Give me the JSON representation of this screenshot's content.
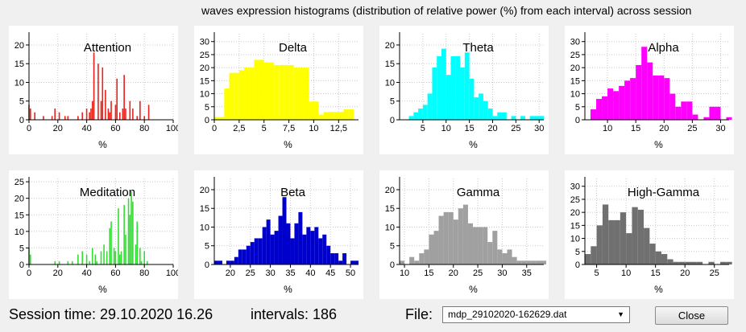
{
  "window_title": "waves expression histograms (distribution of relative power (%) from each interval) across session",
  "footer": {
    "session_time": "Session time: 29.10.2020 16.26",
    "intervals": "intervals: 186",
    "file_label": "File:",
    "file_value": "mdp_29102020-162629.dat",
    "close_label": "Close"
  },
  "chart_data": [
    {
      "type": "bar",
      "title": "Attention",
      "xlabel": "%",
      "color": "#e8241c",
      "style": "spike",
      "xlim": [
        0,
        100
      ],
      "ylim": [
        0,
        23
      ],
      "xticks": [
        0,
        20,
        40,
        60,
        80,
        100
      ],
      "yticks": [
        0,
        5,
        10,
        15,
        20
      ],
      "bins": [
        [
          0,
          4
        ],
        [
          1,
          3
        ],
        [
          4,
          2
        ],
        [
          10,
          1
        ],
        [
          16,
          1
        ],
        [
          18,
          3
        ],
        [
          21,
          2
        ],
        [
          25,
          1
        ],
        [
          27,
          1
        ],
        [
          34,
          1
        ],
        [
          37,
          2
        ],
        [
          40,
          3
        ],
        [
          42,
          2
        ],
        [
          43,
          3
        ],
        [
          44,
          5
        ],
        [
          45,
          18
        ],
        [
          48,
          15
        ],
        [
          50,
          5
        ],
        [
          51,
          14
        ],
        [
          53,
          8
        ],
        [
          55,
          3
        ],
        [
          56,
          2
        ],
        [
          57,
          5
        ],
        [
          60,
          4
        ],
        [
          61,
          11
        ],
        [
          63,
          2
        ],
        [
          65,
          3
        ],
        [
          66,
          12
        ],
        [
          67,
          3
        ],
        [
          70,
          5
        ],
        [
          72,
          3
        ],
        [
          75,
          1
        ],
        [
          77,
          5
        ],
        [
          80,
          1
        ],
        [
          83,
          4
        ]
      ],
      "bin_width": 1.0
    },
    {
      "type": "bar",
      "title": "Delta",
      "xlabel": "%",
      "color": "#ffff00",
      "style": "bar",
      "xlim": [
        0,
        14.5
      ],
      "ylim": [
        0,
        33
      ],
      "xticks": [
        0,
        2.5,
        5,
        7.5,
        10,
        12.5
      ],
      "xtick_labels": [
        "0",
        "2,5",
        "5",
        "7,5",
        "10",
        "12,5"
      ],
      "yticks": [
        0,
        5,
        10,
        15,
        20,
        25,
        30
      ],
      "bins": [
        [
          0,
          1
        ],
        [
          0.5,
          1
        ],
        [
          1,
          12
        ],
        [
          1.5,
          18
        ],
        [
          2,
          18
        ],
        [
          2.5,
          19
        ],
        [
          3,
          20
        ],
        [
          3.5,
          20
        ],
        [
          4,
          23
        ],
        [
          4.5,
          23
        ],
        [
          5,
          22
        ],
        [
          5.5,
          22
        ],
        [
          6,
          21
        ],
        [
          6.5,
          21
        ],
        [
          7,
          21
        ],
        [
          7.5,
          21
        ],
        [
          8,
          20
        ],
        [
          8.5,
          20
        ],
        [
          9,
          20
        ],
        [
          9.5,
          7
        ],
        [
          10,
          7
        ],
        [
          10.5,
          2
        ],
        [
          11,
          3
        ],
        [
          11.5,
          3
        ],
        [
          12,
          3
        ],
        [
          12.5,
          3
        ],
        [
          13,
          4
        ],
        [
          13.5,
          4
        ]
      ],
      "bin_width": 0.5
    },
    {
      "type": "bar",
      "title": "Theta",
      "xlabel": "%",
      "color": "#00ffff",
      "style": "bar",
      "xlim": [
        0,
        31
      ],
      "ylim": [
        0,
        23
      ],
      "xticks": [
        5,
        10,
        15,
        20,
        25,
        30
      ],
      "yticks": [
        0,
        5,
        10,
        15,
        20
      ],
      "bins": [
        [
          2,
          1
        ],
        [
          3,
          2
        ],
        [
          4,
          3
        ],
        [
          5,
          4
        ],
        [
          6,
          7
        ],
        [
          7,
          14
        ],
        [
          8,
          17
        ],
        [
          9,
          19
        ],
        [
          10,
          12
        ],
        [
          11,
          17
        ],
        [
          12,
          17
        ],
        [
          13,
          14
        ],
        [
          14,
          18
        ],
        [
          15,
          11
        ],
        [
          16,
          6
        ],
        [
          17,
          7
        ],
        [
          18,
          5
        ],
        [
          19,
          3
        ],
        [
          20,
          1
        ],
        [
          21,
          2
        ],
        [
          22,
          2
        ],
        [
          24,
          1
        ],
        [
          26,
          1
        ],
        [
          28,
          1
        ],
        [
          29,
          1
        ],
        [
          30,
          1
        ]
      ],
      "bin_width": 1.0
    },
    {
      "type": "bar",
      "title": "Alpha",
      "xlabel": "%",
      "color": "#ff00ff",
      "style": "bar",
      "xlim": [
        6,
        31.5
      ],
      "ylim": [
        0,
        33
      ],
      "xticks": [
        10,
        15,
        20,
        25,
        30
      ],
      "yticks": [
        0,
        5,
        10,
        15,
        20,
        25,
        30
      ],
      "bins": [
        [
          7,
          4
        ],
        [
          8,
          8
        ],
        [
          9,
          9
        ],
        [
          10,
          12
        ],
        [
          11,
          11
        ],
        [
          12,
          13
        ],
        [
          13,
          15
        ],
        [
          14,
          16
        ],
        [
          15,
          21
        ],
        [
          16,
          28
        ],
        [
          17,
          22
        ],
        [
          18,
          17
        ],
        [
          19,
          17
        ],
        [
          20,
          16
        ],
        [
          21,
          10
        ],
        [
          22,
          5
        ],
        [
          23,
          7
        ],
        [
          24,
          7
        ],
        [
          25,
          2
        ],
        [
          27,
          1
        ],
        [
          28,
          5
        ],
        [
          29,
          5
        ],
        [
          31,
          1
        ]
      ],
      "bin_width": 1.0
    },
    {
      "type": "bar",
      "title": "Meditation",
      "xlabel": "%",
      "color": "#33dd33",
      "style": "spike",
      "xlim": [
        0,
        100
      ],
      "ylim": [
        0,
        26
      ],
      "xticks": [
        0,
        20,
        40,
        60,
        80,
        100
      ],
      "yticks": [
        0,
        5,
        10,
        15,
        20,
        25
      ],
      "bins": [
        [
          0,
          5
        ],
        [
          1,
          3
        ],
        [
          18,
          1
        ],
        [
          21,
          1
        ],
        [
          27,
          1
        ],
        [
          30,
          1
        ],
        [
          34,
          3
        ],
        [
          37,
          4
        ],
        [
          40,
          3
        ],
        [
          42,
          1
        ],
        [
          44,
          5
        ],
        [
          46,
          3
        ],
        [
          47,
          1
        ],
        [
          50,
          4
        ],
        [
          52,
          6
        ],
        [
          54,
          4
        ],
        [
          56,
          11
        ],
        [
          57,
          13
        ],
        [
          59,
          5
        ],
        [
          60,
          4
        ],
        [
          62,
          17
        ],
        [
          63,
          3
        ],
        [
          64,
          4
        ],
        [
          66,
          18
        ],
        [
          67,
          9
        ],
        [
          69,
          20
        ],
        [
          70,
          15
        ],
        [
          71,
          22
        ],
        [
          72,
          19
        ],
        [
          74,
          6
        ],
        [
          75,
          13
        ],
        [
          77,
          5
        ],
        [
          78,
          1
        ],
        [
          80,
          4
        ],
        [
          82,
          1
        ]
      ],
      "bin_width": 0.9
    },
    {
      "type": "bar",
      "title": "Beta",
      "xlabel": "%",
      "color": "#0000cc",
      "style": "bar",
      "xlim": [
        16,
        52
      ],
      "ylim": [
        0,
        23
      ],
      "xticks": [
        20,
        25,
        30,
        35,
        40,
        45,
        50
      ],
      "yticks": [
        0,
        5,
        10,
        15,
        20
      ],
      "bins": [
        [
          16,
          1
        ],
        [
          17,
          1
        ],
        [
          19,
          1
        ],
        [
          20,
          1
        ],
        [
          21,
          2
        ],
        [
          22,
          4
        ],
        [
          23,
          4
        ],
        [
          24,
          5
        ],
        [
          25,
          6
        ],
        [
          26,
          7
        ],
        [
          27,
          7
        ],
        [
          28,
          10
        ],
        [
          29,
          12
        ],
        [
          30,
          8
        ],
        [
          31,
          9
        ],
        [
          32,
          13
        ],
        [
          33,
          18
        ],
        [
          34,
          11
        ],
        [
          35,
          7
        ],
        [
          36,
          11
        ],
        [
          37,
          14
        ],
        [
          38,
          8
        ],
        [
          39,
          10
        ],
        [
          40,
          9
        ],
        [
          41,
          10
        ],
        [
          42,
          7
        ],
        [
          43,
          8
        ],
        [
          44,
          5
        ],
        [
          45,
          3
        ],
        [
          46,
          3
        ],
        [
          47,
          1
        ],
        [
          48,
          3
        ],
        [
          50,
          1
        ],
        [
          51,
          1
        ]
      ],
      "bin_width": 1.0
    },
    {
      "type": "bar",
      "title": "Gamma",
      "xlabel": "%",
      "color": "#a0a0a0",
      "style": "bar",
      "xlim": [
        9,
        38.5
      ],
      "ylim": [
        0,
        23
      ],
      "xticks": [
        10,
        15,
        20,
        25,
        30,
        35
      ],
      "yticks": [
        0,
        5,
        10,
        15,
        20
      ],
      "bins": [
        [
          9,
          1
        ],
        [
          11,
          2
        ],
        [
          12,
          1
        ],
        [
          13,
          3
        ],
        [
          14,
          4
        ],
        [
          15,
          8
        ],
        [
          16,
          9
        ],
        [
          17,
          13
        ],
        [
          18,
          14
        ],
        [
          19,
          14
        ],
        [
          20,
          12
        ],
        [
          21,
          15
        ],
        [
          22,
          16
        ],
        [
          23,
          11
        ],
        [
          24,
          10
        ],
        [
          25,
          10
        ],
        [
          26,
          10
        ],
        [
          27,
          6
        ],
        [
          28,
          9
        ],
        [
          29,
          4
        ],
        [
          30,
          3
        ],
        [
          31,
          4
        ],
        [
          32,
          2
        ],
        [
          33,
          1
        ],
        [
          34,
          1
        ],
        [
          35,
          1
        ],
        [
          36,
          1
        ],
        [
          37,
          1
        ],
        [
          38,
          1
        ]
      ],
      "bin_width": 1.0
    },
    {
      "type": "bar",
      "title": "High-Gamma",
      "xlabel": "%",
      "color": "#707070",
      "style": "bar",
      "xlim": [
        3,
        27.5
      ],
      "ylim": [
        0,
        33
      ],
      "xticks": [
        5,
        10,
        15,
        20,
        25
      ],
      "yticks": [
        0,
        5,
        10,
        15,
        20,
        25,
        30
      ],
      "bins": [
        [
          3,
          4
        ],
        [
          4,
          7
        ],
        [
          5,
          15
        ],
        [
          6,
          23
        ],
        [
          7,
          17
        ],
        [
          8,
          17
        ],
        [
          9,
          20
        ],
        [
          10,
          12
        ],
        [
          11,
          22
        ],
        [
          12,
          21
        ],
        [
          13,
          14
        ],
        [
          14,
          8
        ],
        [
          15,
          5
        ],
        [
          16,
          4
        ],
        [
          17,
          2
        ],
        [
          18,
          1
        ],
        [
          19,
          1
        ],
        [
          20,
          1
        ],
        [
          21,
          1
        ],
        [
          22,
          1
        ],
        [
          24,
          1
        ],
        [
          26,
          1
        ],
        [
          27,
          1
        ]
      ],
      "bin_width": 1.0
    }
  ]
}
